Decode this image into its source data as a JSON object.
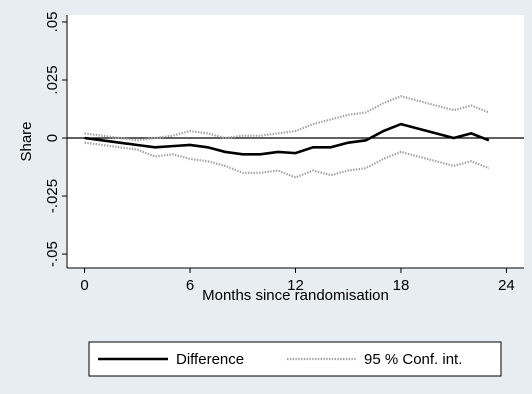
{
  "chart_data": {
    "type": "line",
    "title": "",
    "xlabel": "Months since randomisation",
    "ylabel": "Share",
    "xlim": [
      -1,
      25
    ],
    "ylim": [
      -0.056,
      0.053
    ],
    "x_ticks": [
      0,
      6,
      12,
      18,
      24
    ],
    "x_tick_labels": [
      "0",
      "6",
      "12",
      "18",
      "24"
    ],
    "y_ticks": [
      -0.05,
      -0.025,
      0,
      0.025,
      0.05
    ],
    "y_tick_labels": [
      "-.05",
      "-.025",
      "0",
      ".025",
      ".05"
    ],
    "reference_line_y": 0,
    "grid": false,
    "legend_position": "bottom",
    "x": [
      0,
      1,
      2,
      3,
      4,
      5,
      6,
      7,
      8,
      9,
      10,
      11,
      12,
      13,
      14,
      15,
      16,
      17,
      18,
      19,
      20,
      21,
      22,
      23
    ],
    "series": [
      {
        "name": "Difference",
        "color": "#000000",
        "style": "solid",
        "values": [
          0.0,
          -0.001,
          -0.002,
          -0.003,
          -0.004,
          -0.0035,
          -0.003,
          -0.004,
          -0.006,
          -0.007,
          -0.007,
          -0.006,
          -0.0065,
          -0.004,
          -0.004,
          -0.002,
          -0.001,
          0.003,
          0.006,
          0.004,
          0.002,
          0.0,
          0.002,
          -0.001
        ]
      },
      {
        "name": "95 % Conf. int.",
        "color": "#a0a0a0",
        "style": "dotted",
        "bound": "upper",
        "values": [
          0.002,
          0.001,
          0.0,
          -0.001,
          0.0,
          0.001,
          0.003,
          0.002,
          0.0,
          0.001,
          0.001,
          0.002,
          0.003,
          0.006,
          0.008,
          0.01,
          0.011,
          0.015,
          0.018,
          0.016,
          0.014,
          0.012,
          0.014,
          0.011
        ]
      },
      {
        "name": "95 % Conf. int.",
        "color": "#a0a0a0",
        "style": "dotted",
        "bound": "lower",
        "values": [
          -0.002,
          -0.003,
          -0.004,
          -0.005,
          -0.008,
          -0.007,
          -0.009,
          -0.01,
          -0.012,
          -0.015,
          -0.015,
          -0.014,
          -0.017,
          -0.014,
          -0.016,
          -0.014,
          -0.013,
          -0.009,
          -0.006,
          -0.008,
          -0.01,
          -0.012,
          -0.01,
          -0.013
        ]
      }
    ],
    "legend": [
      {
        "label": "Difference",
        "style": "solid"
      },
      {
        "label": "95 % Conf. int.",
        "style": "dotted"
      }
    ]
  }
}
